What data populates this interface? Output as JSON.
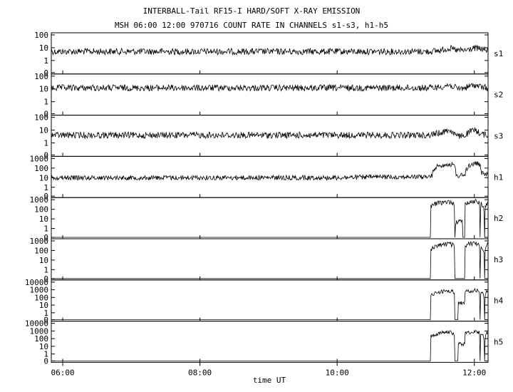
{
  "chart_data": {
    "type": "line",
    "title": "INTERBALL-Tail RF15-I HARD/SOFT X-RAY EMISSION",
    "subtitle": "MSH 06:00 12:00 970716  COUNT RATE IN CHANNELS s1-s3, h1-h5",
    "xlabel": "time UT",
    "x_ticks": [
      "06:00",
      "08:00",
      "10:00",
      "12:00"
    ],
    "xlim": [
      "05:50",
      "12:12"
    ],
    "yscale": "log",
    "grid": false,
    "legend": "none",
    "line_color": "#000000",
    "panels": [
      {
        "name": "s1",
        "y_ticks": [
          "100",
          "10",
          "1",
          "0"
        ],
        "points": [
          [
            "05:50",
            5
          ],
          [
            "06:30",
            5
          ],
          [
            "07:00",
            5
          ],
          [
            "07:30",
            5
          ],
          [
            "08:00",
            5
          ],
          [
            "08:30",
            5
          ],
          [
            "09:00",
            5
          ],
          [
            "09:30",
            5
          ],
          [
            "10:00",
            5
          ],
          [
            "10:30",
            5
          ],
          [
            "11:00",
            5
          ],
          [
            "11:20",
            5
          ],
          [
            "11:30",
            6
          ],
          [
            "11:38",
            9
          ],
          [
            "11:45",
            6
          ],
          [
            "11:52",
            6
          ],
          [
            "12:00",
            9
          ],
          [
            "12:06",
            8
          ],
          [
            "12:12",
            6
          ]
        ]
      },
      {
        "name": "s2",
        "y_ticks": [
          "100",
          "10",
          "1",
          "0"
        ],
        "points": [
          [
            "05:50",
            12
          ],
          [
            "06:30",
            12
          ],
          [
            "07:00",
            12
          ],
          [
            "07:30",
            12
          ],
          [
            "08:00",
            12
          ],
          [
            "08:30",
            12
          ],
          [
            "09:00",
            12
          ],
          [
            "09:30",
            12
          ],
          [
            "10:00",
            12
          ],
          [
            "10:30",
            12
          ],
          [
            "11:00",
            12
          ],
          [
            "11:20",
            12
          ],
          [
            "11:30",
            14
          ],
          [
            "11:38",
            20
          ],
          [
            "11:45",
            10
          ],
          [
            "11:52",
            12
          ],
          [
            "12:00",
            20
          ],
          [
            "12:06",
            14
          ],
          [
            "12:12",
            12
          ]
        ]
      },
      {
        "name": "s3",
        "y_ticks": [
          "100",
          "10",
          "1",
          "0"
        ],
        "points": [
          [
            "05:50",
            4
          ],
          [
            "06:30",
            4
          ],
          [
            "07:00",
            4
          ],
          [
            "07:30",
            4
          ],
          [
            "08:00",
            4
          ],
          [
            "08:30",
            4
          ],
          [
            "09:00",
            4
          ],
          [
            "09:30",
            4
          ],
          [
            "10:00",
            4
          ],
          [
            "10:30",
            4
          ],
          [
            "11:00",
            4
          ],
          [
            "11:20",
            4
          ],
          [
            "11:30",
            6
          ],
          [
            "11:38",
            10
          ],
          [
            "11:45",
            3
          ],
          [
            "11:52",
            4
          ],
          [
            "12:00",
            10
          ],
          [
            "12:06",
            5
          ],
          [
            "12:12",
            4
          ]
        ]
      },
      {
        "name": "h1",
        "y_ticks": [
          "1000",
          "100",
          "10",
          "1",
          "0"
        ],
        "points": [
          [
            "05:50",
            10
          ],
          [
            "06:30",
            10
          ],
          [
            "07:00",
            10
          ],
          [
            "07:30",
            10
          ],
          [
            "08:00",
            10
          ],
          [
            "08:30",
            10
          ],
          [
            "09:00",
            10
          ],
          [
            "09:30",
            10
          ],
          [
            "10:00",
            10
          ],
          [
            "10:30",
            12
          ],
          [
            "11:00",
            12
          ],
          [
            "11:20",
            12
          ],
          [
            "11:23",
            15
          ],
          [
            "11:27",
            150
          ],
          [
            "11:32",
            200
          ],
          [
            "11:38",
            250
          ],
          [
            "11:42",
            200
          ],
          [
            "11:44",
            15
          ],
          [
            "11:52",
            20
          ],
          [
            "11:56",
            200
          ],
          [
            "12:00",
            300
          ],
          [
            "12:04",
            300
          ],
          [
            "12:06",
            30
          ],
          [
            "12:12",
            20
          ]
        ]
      },
      {
        "name": "h2",
        "y_ticks": [
          "1000",
          "100",
          "10",
          "1",
          "0"
        ],
        "points": [
          [
            "05:50",
            0
          ],
          [
            "11:20",
            0
          ],
          [
            "11:22",
            0
          ],
          [
            "11:22",
            200
          ],
          [
            "11:27",
            400
          ],
          [
            "11:32",
            500
          ],
          [
            "11:38",
            600
          ],
          [
            "11:42",
            400
          ],
          [
            "11:43",
            0
          ],
          [
            "11:44",
            5
          ],
          [
            "11:50",
            5
          ],
          [
            "11:50",
            0
          ],
          [
            "11:52",
            0
          ],
          [
            "11:52",
            400
          ],
          [
            "11:56",
            600
          ],
          [
            "12:00",
            700
          ],
          [
            "12:04",
            600
          ],
          [
            "12:05",
            0
          ],
          [
            "12:06",
            400
          ],
          [
            "12:09",
            0
          ],
          [
            "12:10",
            300
          ],
          [
            "12:12",
            500
          ]
        ]
      },
      {
        "name": "h3",
        "y_ticks": [
          "1000",
          "100",
          "10",
          "1",
          "0"
        ],
        "points": [
          [
            "05:50",
            0
          ],
          [
            "11:20",
            0
          ],
          [
            "11:22",
            0
          ],
          [
            "11:22",
            100
          ],
          [
            "11:27",
            300
          ],
          [
            "11:32",
            400
          ],
          [
            "11:38",
            500
          ],
          [
            "11:42",
            300
          ],
          [
            "11:43",
            0
          ],
          [
            "11:52",
            0
          ],
          [
            "11:52",
            300
          ],
          [
            "11:56",
            500
          ],
          [
            "12:00",
            600
          ],
          [
            "12:04",
            500
          ],
          [
            "12:05",
            0
          ],
          [
            "12:06",
            300
          ],
          [
            "12:09",
            0
          ],
          [
            "12:10",
            200
          ],
          [
            "12:12",
            400
          ]
        ]
      },
      {
        "name": "h4",
        "y_ticks": [
          "10000",
          "1000",
          "100",
          "10",
          "1",
          "0"
        ],
        "points": [
          [
            "05:50",
            0
          ],
          [
            "11:20",
            0
          ],
          [
            "11:22",
            0
          ],
          [
            "11:22",
            200
          ],
          [
            "11:27",
            400
          ],
          [
            "11:32",
            600
          ],
          [
            "11:38",
            700
          ],
          [
            "11:42",
            500
          ],
          [
            "11:43",
            0
          ],
          [
            "11:46",
            0
          ],
          [
            "11:46",
            20
          ],
          [
            "11:52",
            20
          ],
          [
            "11:52",
            500
          ],
          [
            "11:56",
            700
          ],
          [
            "12:00",
            800
          ],
          [
            "12:04",
            700
          ],
          [
            "12:05",
            0
          ],
          [
            "12:06",
            500
          ],
          [
            "12:09",
            0
          ],
          [
            "12:10",
            400
          ],
          [
            "12:12",
            600
          ]
        ]
      },
      {
        "name": "h5",
        "y_ticks": [
          "10000",
          "1000",
          "100",
          "10",
          "1",
          "0"
        ],
        "points": [
          [
            "05:50",
            0
          ],
          [
            "11:20",
            0
          ],
          [
            "11:22",
            0
          ],
          [
            "11:22",
            200
          ],
          [
            "11:27",
            400
          ],
          [
            "11:32",
            600
          ],
          [
            "11:38",
            700
          ],
          [
            "11:42",
            500
          ],
          [
            "11:43",
            0
          ],
          [
            "11:46",
            0
          ],
          [
            "11:46",
            20
          ],
          [
            "11:52",
            20
          ],
          [
            "11:52",
            500
          ],
          [
            "11:56",
            700
          ],
          [
            "12:00",
            800
          ],
          [
            "12:04",
            700
          ],
          [
            "12:05",
            0
          ],
          [
            "12:06",
            500
          ],
          [
            "12:09",
            0
          ],
          [
            "12:10",
            400
          ],
          [
            "12:12",
            600
          ]
        ]
      }
    ]
  }
}
